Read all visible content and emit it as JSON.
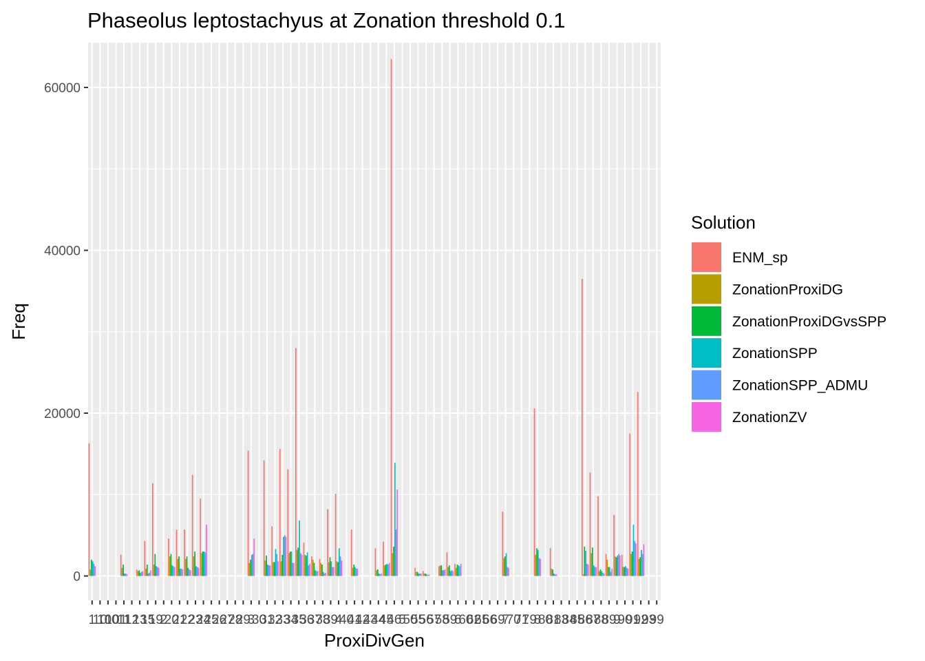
{
  "chart_data": {
    "type": "bar",
    "title": "Phaseolus leptostachyus at Zonation threshold 0.1",
    "xlabel": "ProxiDivGen",
    "ylabel": "Freq",
    "ylim": [
      -3000,
      65500
    ],
    "yticks": [
      0,
      20000,
      40000,
      60000
    ],
    "ytick_labels": [
      "0",
      "20000",
      "40000",
      "60000"
    ],
    "grid": true,
    "legend_position": "right",
    "legend_title": "Solution",
    "categories": [
      "1",
      "10",
      "100",
      "101",
      "11",
      "12",
      "13",
      "15",
      "19",
      "2",
      "20",
      "21",
      "22",
      "23",
      "24",
      "25",
      "26",
      "27",
      "28",
      "29",
      "3",
      "30",
      "31",
      "32",
      "33",
      "34",
      "35",
      "36",
      "37",
      "38",
      "39",
      "4",
      "40",
      "41",
      "42",
      "43",
      "44",
      "45",
      "46",
      "5",
      "50",
      "55",
      "56",
      "57",
      "58",
      "59",
      "6",
      "60",
      "62",
      "65",
      "66",
      "69",
      "7",
      "70",
      "71",
      "79",
      "8",
      "80",
      "81",
      "83",
      "84",
      "85",
      "86",
      "87",
      "88",
      "89",
      "9",
      "90",
      "91",
      "92",
      "93",
      "99"
    ],
    "x_tick_labels": [
      "1",
      "10",
      "100",
      "101",
      "11",
      "12",
      "13",
      "15",
      "19",
      "2",
      "20",
      "21",
      "22",
      "23",
      "24",
      "25",
      "26",
      "27",
      "28",
      "29",
      "3",
      "30",
      "31",
      "32",
      "33",
      "34",
      "35",
      "36",
      "37",
      "38",
      "39",
      "4",
      "40",
      "41",
      "42",
      "43",
      "44",
      "45",
      "46",
      "5",
      "50",
      "55",
      "56",
      "57",
      "58",
      "59",
      "6",
      "60",
      "62",
      "65",
      "66",
      "69",
      "7",
      "70",
      "71",
      "79",
      "8",
      "80",
      "81",
      "83",
      "84",
      "85",
      "86",
      "87",
      "88",
      "89",
      "9",
      "90",
      "91",
      "92",
      "93",
      "99"
    ],
    "series": [
      {
        "name": "ENM_sp",
        "color": "#F8766D",
        "values": [
          16300,
          0,
          0,
          0,
          2600,
          0,
          800,
          4300,
          11400,
          0,
          4600,
          5700,
          5700,
          12400,
          9500,
          0,
          0,
          0,
          0,
          0,
          15400,
          0,
          14200,
          6100,
          15600,
          13100,
          28000,
          4100,
          2400,
          2100,
          8200,
          10100,
          0,
          5700,
          0,
          0,
          3400,
          4200,
          63500,
          0,
          0,
          1000,
          600,
          0,
          1200,
          2900,
          1500,
          0,
          0,
          0,
          0,
          0,
          7900,
          0,
          0,
          0,
          20600,
          0,
          3400,
          0,
          0,
          0,
          36500,
          12700,
          9800,
          2700,
          7500,
          2600,
          17500,
          22600,
          0,
          0
        ]
      },
      {
        "name": "ZonationProxiDG",
        "color": "#B79F00",
        "values": [
          800,
          0,
          0,
          0,
          1000,
          0,
          600,
          900,
          1400,
          0,
          2400,
          2100,
          2100,
          2400,
          2800,
          0,
          0,
          0,
          0,
          0,
          1600,
          0,
          1900,
          1700,
          1800,
          2800,
          3200,
          2600,
          2000,
          1600,
          1700,
          1800,
          0,
          1000,
          0,
          0,
          700,
          1300,
          2800,
          0,
          0,
          500,
          300,
          0,
          1300,
          1100,
          1000,
          0,
          0,
          0,
          0,
          0,
          2200,
          0,
          0,
          0,
          2600,
          0,
          900,
          0,
          0,
          0,
          200,
          2800,
          600,
          2000,
          2400,
          1100,
          2700,
          2100,
          0,
          0
        ]
      },
      {
        "name": "ZonationProxiDGvsSPP",
        "color": "#00BA38",
        "values": [
          2000,
          0,
          0,
          0,
          1400,
          0,
          700,
          1400,
          2700,
          0,
          2700,
          2400,
          2400,
          3000,
          3000,
          0,
          0,
          0,
          0,
          0,
          2000,
          0,
          2500,
          1700,
          2600,
          3000,
          3500,
          2500,
          1600,
          1400,
          2300,
          1700,
          0,
          1400,
          0,
          0,
          800,
          1400,
          3600,
          0,
          0,
          500,
          300,
          0,
          1300,
          1300,
          1400,
          0,
          0,
          0,
          0,
          0,
          2400,
          0,
          0,
          0,
          3400,
          0,
          800,
          0,
          0,
          0,
          3600,
          3500,
          800,
          1100,
          2300,
          1100,
          3000,
          2300,
          0,
          0
        ]
      },
      {
        "name": "ZonationSPP",
        "color": "#00BFC4",
        "values": [
          1800,
          0,
          0,
          0,
          300,
          0,
          400,
          300,
          1200,
          0,
          1300,
          900,
          1000,
          1200,
          3000,
          0,
          0,
          0,
          0,
          0,
          2600,
          0,
          1400,
          3300,
          4800,
          3000,
          6800,
          2900,
          700,
          500,
          1800,
          3400,
          0,
          1100,
          0,
          0,
          300,
          1500,
          13900,
          0,
          0,
          300,
          200,
          0,
          700,
          600,
          1300,
          0,
          0,
          0,
          0,
          0,
          2800,
          0,
          0,
          0,
          3200,
          0,
          300,
          0,
          0,
          0,
          3100,
          1300,
          600,
          1100,
          2500,
          1200,
          6300,
          3200,
          0,
          0
        ]
      },
      {
        "name": "ZonationSPP_ADMU",
        "color": "#619CFF",
        "values": [
          1500,
          0,
          0,
          0,
          300,
          0,
          500,
          400,
          1100,
          0,
          1200,
          900,
          800,
          1100,
          2900,
          0,
          0,
          0,
          0,
          0,
          2700,
          0,
          1300,
          2700,
          5000,
          1600,
          2800,
          1300,
          600,
          300,
          1100,
          2400,
          0,
          900,
          0,
          0,
          200,
          1400,
          5700,
          0,
          0,
          300,
          100,
          0,
          700,
          700,
          1200,
          0,
          0,
          0,
          0,
          0,
          1100,
          0,
          0,
          0,
          2200,
          0,
          200,
          0,
          0,
          0,
          1500,
          1100,
          400,
          500,
          2700,
          1000,
          4300,
          2700,
          0,
          0
        ]
      },
      {
        "name": "ZonationZV",
        "color": "#F564E3",
        "values": [
          1200,
          0,
          0,
          0,
          200,
          0,
          600,
          700,
          1000,
          0,
          1100,
          800,
          700,
          1000,
          6300,
          0,
          0,
          0,
          0,
          0,
          4600,
          0,
          1300,
          1800,
          4800,
          1600,
          2600,
          1500,
          600,
          400,
          1100,
          1900,
          0,
          900,
          0,
          0,
          300,
          1600,
          10600,
          0,
          0,
          300,
          200,
          0,
          800,
          600,
          1500,
          0,
          0,
          0,
          0,
          0,
          1000,
          0,
          0,
          0,
          2100,
          0,
          200,
          0,
          0,
          0,
          1400,
          1100,
          300,
          900,
          2500,
          900,
          4000,
          3900,
          0,
          0
        ]
      }
    ]
  }
}
